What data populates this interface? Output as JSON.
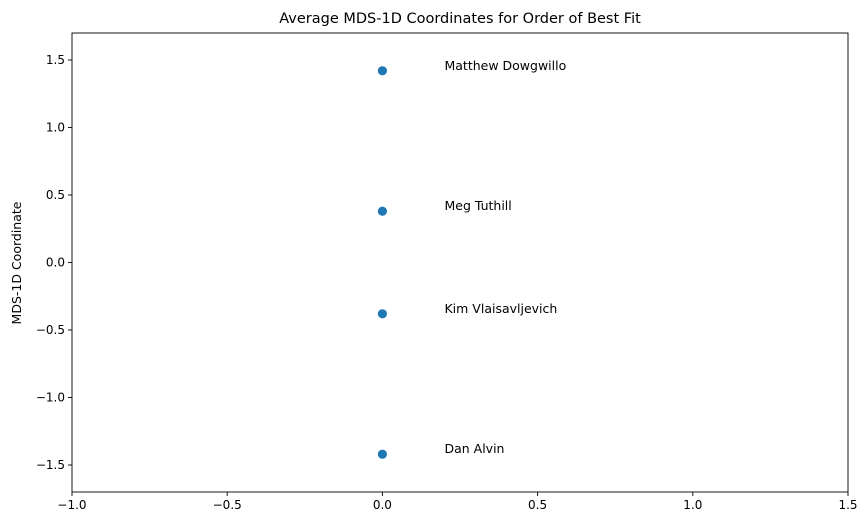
{
  "chart_data": {
    "type": "scatter",
    "title": "Average MDS-1D Coordinates for Order of Best Fit",
    "xlabel": "",
    "ylabel": "MDS-1D Coordinate",
    "xlim": [
      -1.0,
      1.5
    ],
    "ylim": [
      -1.7,
      1.7
    ],
    "xticks": [
      -1.0,
      -0.5,
      0.0,
      0.5,
      1.0,
      1.5
    ],
    "xtick_labels": [
      "−1.0",
      "−0.5",
      "0.0",
      "0.5",
      "1.0",
      "1.5"
    ],
    "yticks": [
      -1.5,
      -1.0,
      -0.5,
      0.0,
      0.5,
      1.0,
      1.5
    ],
    "ytick_labels": [
      "−1.5",
      "−1.0",
      "−0.5",
      "0.0",
      "0.5",
      "1.0",
      "1.5"
    ],
    "grid": false,
    "color": "#1f77b4",
    "points": [
      {
        "label": "Matthew Dowgwillo",
        "x": 0.0,
        "y": 1.42
      },
      {
        "label": "Meg Tuthill",
        "x": 0.0,
        "y": 0.38
      },
      {
        "label": "Kim Vlaisavljevich",
        "x": 0.0,
        "y": -0.38
      },
      {
        "label": "Dan Alvin",
        "x": 0.0,
        "y": -1.42
      }
    ],
    "annotation_offset_x": 0.2
  }
}
